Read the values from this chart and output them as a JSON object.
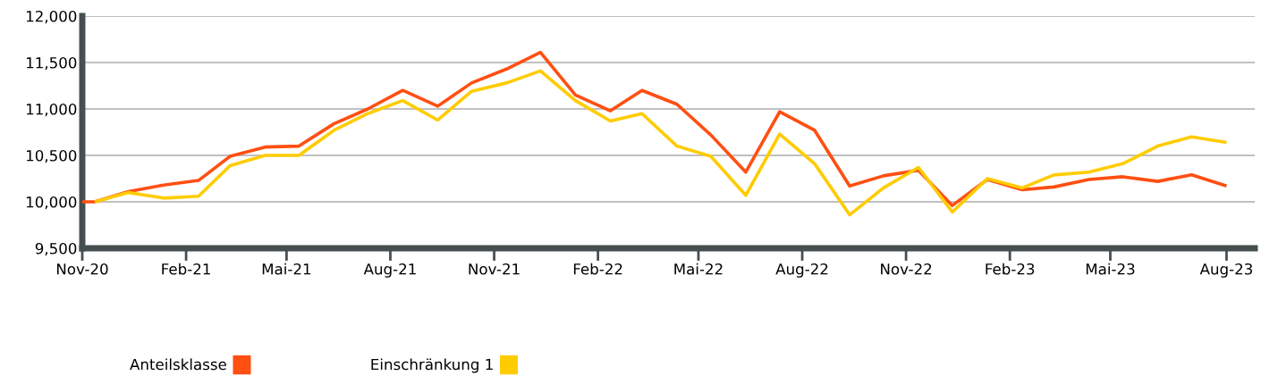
{
  "chart_data": {
    "type": "line",
    "xlim": [
      "2020-11-01",
      "2023-09-06"
    ],
    "xticks": [
      {
        "value": "2020-11-01",
        "label": "Nov-20"
      },
      {
        "value": "2021-02-01",
        "label": "Feb-21"
      },
      {
        "value": "2021-05-01",
        "label": "Mai-21"
      },
      {
        "value": "2021-08-01",
        "label": "Aug-21"
      },
      {
        "value": "2021-11-01",
        "label": "Nov-21"
      },
      {
        "value": "2022-02-01",
        "label": "Feb-22"
      },
      {
        "value": "2022-05-01",
        "label": "Mai-22"
      },
      {
        "value": "2022-08-01",
        "label": "Aug-22"
      },
      {
        "value": "2022-11-01",
        "label": "Nov-22"
      },
      {
        "value": "2023-02-01",
        "label": "Feb-23"
      },
      {
        "value": "2023-05-01",
        "label": "Mai-23"
      },
      {
        "value": "2023-08-12",
        "label": "Aug-23"
      }
    ],
    "ylim": [
      9500,
      12000
    ],
    "yticks": [
      {
        "value": 9500,
        "label": "9,500"
      },
      {
        "value": 10000,
        "label": "10,000"
      },
      {
        "value": 10500,
        "label": "10,500"
      },
      {
        "value": 11000,
        "label": "11,000"
      },
      {
        "value": 11500,
        "label": "11,500"
      },
      {
        "value": 12000,
        "label": "12,000"
      }
    ],
    "grid": "y",
    "legend": "bottom",
    "marker": "none",
    "line_style": "solid",
    "series": [
      {
        "name": "Anteilsklasse",
        "color": "#ff4f12",
        "x": [
          "2020-11-01",
          "2020-11-12",
          "2020-12-12",
          "2021-01-12",
          "2021-02-12",
          "2021-03-12",
          "2021-04-12",
          "2021-05-12",
          "2021-06-12",
          "2021-07-12",
          "2021-08-12",
          "2021-09-12",
          "2021-10-12",
          "2021-11-12",
          "2021-12-12",
          "2022-01-12",
          "2022-02-12",
          "2022-03-12",
          "2022-04-12",
          "2022-05-12",
          "2022-06-12",
          "2022-07-12",
          "2022-08-12",
          "2022-09-12",
          "2022-10-12",
          "2022-11-12",
          "2022-12-12",
          "2023-01-12",
          "2023-02-12",
          "2023-03-12",
          "2023-04-12",
          "2023-05-12",
          "2023-06-12",
          "2023-07-12",
          "2023-08-12"
        ],
        "values": [
          10000,
          10000,
          10110,
          10180,
          10230,
          10490,
          10590,
          10600,
          10840,
          11000,
          11200,
          11030,
          11280,
          11430,
          11610,
          11150,
          10980,
          11200,
          11050,
          10720,
          10320,
          10970,
          10770,
          10170,
          10280,
          10340,
          9960,
          10240,
          10130,
          10160,
          10240,
          10270,
          10220,
          10290,
          10170
        ]
      },
      {
        "name": "Einschränkung 1",
        "color": "#ffcc00",
        "x": [
          "2020-11-12",
          "2020-12-12",
          "2021-01-12",
          "2021-02-12",
          "2021-03-12",
          "2021-04-12",
          "2021-05-12",
          "2021-06-12",
          "2021-07-12",
          "2021-08-12",
          "2021-09-12",
          "2021-10-12",
          "2021-11-12",
          "2021-12-12",
          "2022-01-12",
          "2022-02-12",
          "2022-03-12",
          "2022-04-12",
          "2022-05-12",
          "2022-06-12",
          "2022-07-12",
          "2022-08-12",
          "2022-09-12",
          "2022-10-12",
          "2022-11-12",
          "2022-12-12",
          "2023-01-12",
          "2023-02-12",
          "2023-03-12",
          "2023-04-12",
          "2023-05-12",
          "2023-06-12",
          "2023-07-12",
          "2023-08-12"
        ],
        "values": [
          10000,
          10100,
          10040,
          10060,
          10390,
          10500,
          10500,
          10770,
          10950,
          11090,
          10880,
          11190,
          11280,
          11410,
          11090,
          10870,
          10950,
          10600,
          10490,
          10070,
          10730,
          10410,
          9860,
          10150,
          10370,
          9890,
          10250,
          10150,
          10290,
          10320,
          10410,
          10600,
          10700,
          10640
        ]
      }
    ]
  }
}
